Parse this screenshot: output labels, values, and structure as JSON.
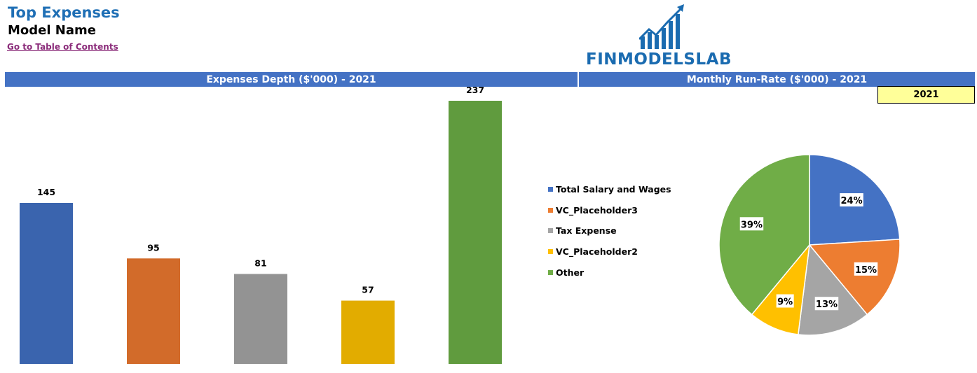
{
  "header": {
    "title": "Top Expenses",
    "subtitle": "Model Name",
    "toc_link": "Go to Table of Contents"
  },
  "logo": {
    "text": "FINMODELSLAB",
    "color": "#1A6BB0"
  },
  "sections": {
    "left_title": "Expenses Depth ($'000) - 2021",
    "right_title": "Monthly Run-Rate ($'000) - 2021",
    "band_color": "#4472C4"
  },
  "year_selector": {
    "value": "2021"
  },
  "chart_data": [
    {
      "type": "bar",
      "title": "Expenses Depth ($'000) - 2021",
      "categories": [
        "Total Salary and Wages",
        "VC_Placeholder3",
        "Tax Expense",
        "VC_Placeholder2",
        "Other"
      ],
      "values": [
        145,
        95,
        81,
        57,
        237
      ],
      "colors": [
        "#3A64AE",
        "#D26B2A",
        "#939393",
        "#E2AC00",
        "#609B3E"
      ],
      "ylim": [
        0,
        237
      ],
      "grid": false,
      "data_labels": true
    },
    {
      "type": "pie",
      "title": "Monthly Run-Rate ($'000) - 2021",
      "categories": [
        "Total Salary and Wages",
        "VC_Placeholder3",
        "Tax Expense",
        "VC_Placeholder2",
        "Other"
      ],
      "values": [
        24,
        15,
        13,
        9,
        39
      ],
      "labels": [
        "24%",
        "15%",
        "13%",
        "9%",
        "39%"
      ],
      "colors": [
        "#4472C4",
        "#ED7D31",
        "#A5A5A5",
        "#FFC000",
        "#70AD47"
      ],
      "legend": [
        "Total Salary and Wages",
        "VC_Placeholder3",
        "Tax Expense",
        "VC_Placeholder2",
        "Other"
      ],
      "legend_position": "left"
    }
  ]
}
